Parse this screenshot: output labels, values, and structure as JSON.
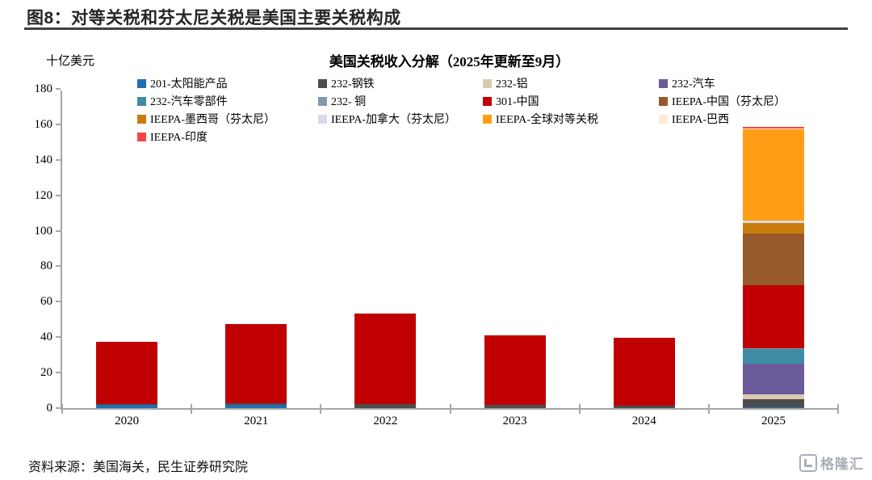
{
  "header": {
    "title": "图8：对等关税和芬太尼关税是美国主要关税构成"
  },
  "chart_data": {
    "type": "bar",
    "stacked": true,
    "title": "美国关税收入分解（2025年更新至9月）",
    "ylabel_unit": "十亿美元",
    "xlabel": "",
    "ylim": [
      0,
      180
    ],
    "ytick_step": 20,
    "grid": false,
    "legend_position": "top",
    "axis_color": "#A6A6A6",
    "categories": [
      "2020",
      "2021",
      "2022",
      "2023",
      "2024",
      "2025"
    ],
    "series": [
      {
        "name": "201-太阳能产品",
        "color": "#1F6FB5",
        "values": [
          1.7,
          2.0,
          0,
          0,
          0,
          0.3
        ]
      },
      {
        "name": "232-钢铁",
        "color": "#4D4D4D",
        "values": [
          0.7,
          0.8,
          2.5,
          1.8,
          1.3,
          4.7
        ]
      },
      {
        "name": "232-铝",
        "color": "#DCC9B0",
        "values": [
          0,
          0,
          0,
          0,
          0,
          2.8
        ]
      },
      {
        "name": "232-汽车",
        "color": "#6A5A9A",
        "values": [
          0,
          0,
          0,
          0,
          0,
          17.4
        ]
      },
      {
        "name": "232-汽车零部件",
        "color": "#3D8CA4",
        "values": [
          0,
          0,
          0,
          0,
          0,
          8.2
        ]
      },
      {
        "name": "232- 铜",
        "color": "#8497B0",
        "values": [
          0,
          0,
          0,
          0,
          0,
          0.5
        ]
      },
      {
        "name": "301-中国",
        "color": "#C00000",
        "values": [
          34.8,
          44.5,
          51.0,
          39.2,
          38.5,
          35.4
        ]
      },
      {
        "name": "IEEPA-中国（芬太尼）",
        "color": "#96592B",
        "values": [
          0,
          0,
          0,
          0,
          0,
          29.3
        ]
      },
      {
        "name": "IEEPA-墨西哥（芬太尼）",
        "color": "#C87D0E",
        "values": [
          0,
          0,
          0,
          0,
          0,
          5.8
        ]
      },
      {
        "name": "IEEPA-加拿大（芬太尼）",
        "color": "#D6DCE5",
        "values": [
          0,
          0,
          0,
          0,
          0,
          1.3
        ]
      },
      {
        "name": "IEEPA-全球对等关税",
        "color": "#FF9E14",
        "values": [
          0,
          0,
          0,
          0,
          0,
          51.5
        ]
      },
      {
        "name": "IEEPA-巴西",
        "color": "#FDEBD3",
        "values": [
          0,
          0,
          0,
          0,
          0,
          0.4
        ]
      },
      {
        "name": "IEEPA-印度",
        "color": "#FA4343",
        "values": [
          0,
          0,
          0,
          0,
          0,
          1.0
        ]
      }
    ],
    "totals": [
      37.2,
      47.3,
      53.5,
      41.0,
      39.8,
      158.6
    ]
  },
  "footer": {
    "source": "资料来源：美国海关，民生证券研究院"
  },
  "logo": {
    "text": "格隆汇"
  }
}
